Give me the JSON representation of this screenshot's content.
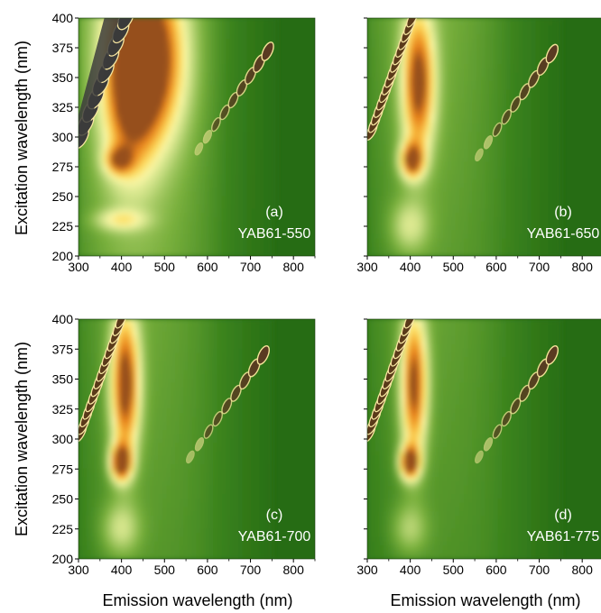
{
  "figure": {
    "y_axis_label": "Excitation wavelength (nm)",
    "x_axis_label": "Emission wavelength (nm)"
  },
  "chart_data": [
    {
      "type": "heatmap",
      "panel_label": "(a)",
      "sample": "YAB61-550",
      "x_ticks": [
        "300",
        "400",
        "500",
        "600",
        "700",
        "800"
      ],
      "y_ticks": [
        "200",
        "225",
        "250",
        "275",
        "300",
        "325",
        "350",
        "375",
        "400"
      ],
      "xlim": [
        300,
        850
      ],
      "ylim": [
        200,
        400
      ],
      "blobs": [
        {
          "x": 460,
          "y": 365,
          "sx": 55,
          "sy": 45,
          "amp": 1.0
        },
        {
          "x": 420,
          "y": 330,
          "sx": 40,
          "sy": 45,
          "amp": 0.5
        },
        {
          "x": 395,
          "y": 280,
          "sx": 22,
          "sy": 8,
          "amp": 0.55
        },
        {
          "x": 400,
          "y": 230,
          "sx": 40,
          "sy": 6,
          "amp": 0.3
        }
      ],
      "scatter_line": {
        "x": [
          580,
          740
        ],
        "y": [
          290,
          372
        ],
        "intensity": 1.0,
        "opacity": 1.0
      },
      "rayleigh_band": {
        "x_start": 305,
        "y_start": 300,
        "intensity": 1.0
      },
      "background_glow": 0.35
    },
    {
      "type": "heatmap",
      "panel_label": "(b)",
      "sample": "YAB61-650",
      "x_ticks": [
        "300",
        "400",
        "500",
        "600",
        "700",
        "800"
      ],
      "y_ticks": [
        "200",
        "225",
        "250",
        "275",
        "300",
        "325",
        "350",
        "375",
        "400"
      ],
      "xlim": [
        300,
        850
      ],
      "ylim": [
        200,
        400
      ],
      "blobs": [
        {
          "x": 420,
          "y": 345,
          "sx": 25,
          "sy": 40,
          "amp": 0.85
        },
        {
          "x": 405,
          "y": 280,
          "sx": 18,
          "sy": 10,
          "amp": 0.8
        },
        {
          "x": 400,
          "y": 225,
          "sx": 30,
          "sy": 15,
          "amp": 0.25
        }
      ],
      "scatter_line": {
        "x": [
          560,
          730
        ],
        "y": [
          285,
          370
        ],
        "intensity": 0.9,
        "opacity": 1.0
      },
      "rayleigh_band": {
        "x_start": 310,
        "y_start": 305,
        "intensity": 0.9
      },
      "background_glow": 0.25
    },
    {
      "type": "heatmap",
      "panel_label": "(c)",
      "sample": "YAB61-700",
      "x_ticks": [
        "300",
        "400",
        "500",
        "600",
        "700",
        "800"
      ],
      "y_ticks": [
        "200",
        "225",
        "250",
        "275",
        "300",
        "325",
        "350",
        "375",
        "400"
      ],
      "xlim": [
        300,
        850
      ],
      "ylim": [
        200,
        400
      ],
      "blobs": [
        {
          "x": 410,
          "y": 345,
          "sx": 22,
          "sy": 40,
          "amp": 0.9
        },
        {
          "x": 400,
          "y": 280,
          "sx": 16,
          "sy": 10,
          "amp": 0.95
        },
        {
          "x": 400,
          "y": 225,
          "sx": 30,
          "sy": 15,
          "amp": 0.25
        }
      ],
      "scatter_line": {
        "x": [
          560,
          730
        ],
        "y": [
          285,
          370
        ],
        "intensity": 0.85,
        "opacity": 1.0
      },
      "rayleigh_band": {
        "x_start": 305,
        "y_start": 305,
        "intensity": 0.9
      },
      "background_glow": 0.22
    },
    {
      "type": "heatmap",
      "panel_label": "(d)",
      "sample": "YAB61-775",
      "x_ticks": [
        "300",
        "400",
        "500",
        "600",
        "700",
        "800"
      ],
      "y_ticks": [
        "200",
        "225",
        "250",
        "275",
        "300",
        "325",
        "350",
        "375",
        "400"
      ],
      "xlim": [
        300,
        850
      ],
      "ylim": [
        200,
        400
      ],
      "blobs": [
        {
          "x": 410,
          "y": 345,
          "sx": 20,
          "sy": 40,
          "amp": 0.85
        },
        {
          "x": 400,
          "y": 280,
          "sx": 15,
          "sy": 9,
          "amp": 0.95
        },
        {
          "x": 400,
          "y": 225,
          "sx": 28,
          "sy": 14,
          "amp": 0.2
        }
      ],
      "scatter_line": {
        "x": [
          560,
          730
        ],
        "y": [
          285,
          370
        ],
        "intensity": 0.85,
        "opacity": 1.0
      },
      "rayleigh_band": {
        "x_start": 305,
        "y_start": 305,
        "intensity": 0.9
      },
      "background_glow": 0.2
    }
  ]
}
